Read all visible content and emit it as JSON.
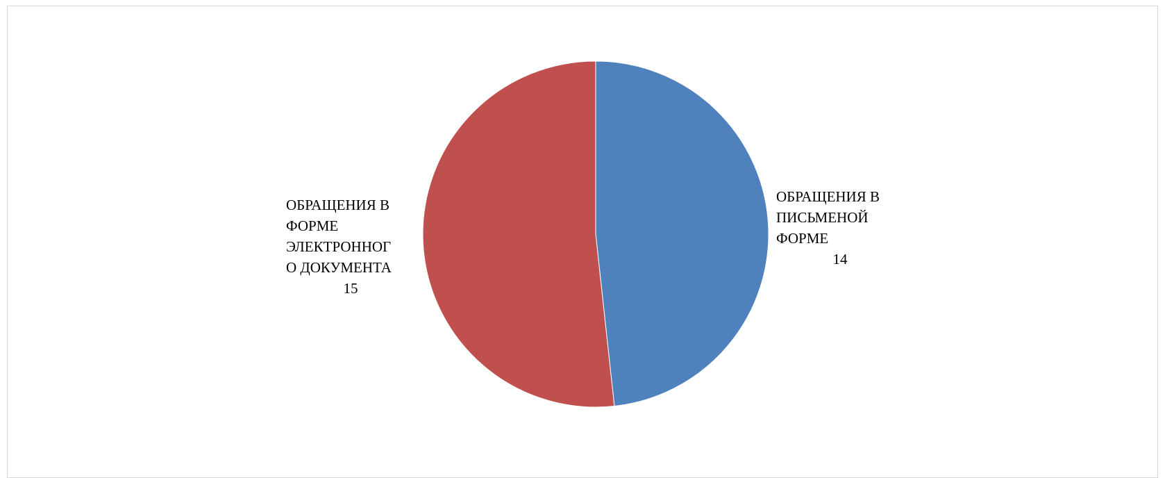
{
  "chart_data": {
    "type": "pie",
    "title": "",
    "slices": [
      {
        "label": "ОБРАЩЕНИЯ В ПИСЬМЕНОЙ ФОРМЕ",
        "label_lines": [
          "ОБРАЩЕНИЯ В",
          "ПИСЬМЕНОЙ",
          "ФОРМЕ"
        ],
        "value": 14,
        "color": "#4f81bd"
      },
      {
        "label": "ОБРАЩЕНИЯ В ФОРМЕ ЭЛЕКТРОННОГО ДОКУМЕНТА",
        "label_lines": [
          "ОБРАЩЕНИЯ В",
          "ФОРМЕ",
          "ЭЛЕКТРОННОГ",
          "О ДОКУМЕНТА"
        ],
        "value": 15,
        "color": "#c0504d"
      }
    ],
    "start_angle": "12 o'clock",
    "direction": "clockwise",
    "legend": "none",
    "data_labels": "category name and value, outside slices"
  },
  "colors": {
    "background": "#ffffff",
    "frame_border": "#d9d9d9",
    "slice_edge": "#ffffff",
    "label_text": "#000000"
  }
}
